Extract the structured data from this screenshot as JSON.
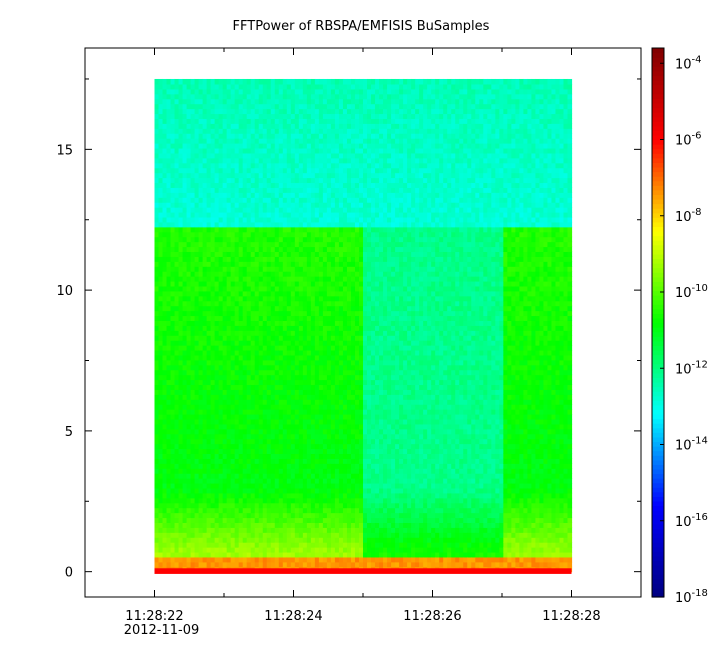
{
  "chart_data": {
    "type": "heatmap",
    "title": "FFTPower of RBSPA/EMFISIS  BuSamples",
    "xlabel": "",
    "ylabel": "",
    "x_ticks": [
      {
        "value": 0,
        "label": "11:28:22",
        "sublabel": "2012-11-09"
      },
      {
        "value": 2,
        "label": "11:28:24",
        "sublabel": ""
      },
      {
        "value": 4,
        "label": "11:28:26",
        "sublabel": ""
      },
      {
        "value": 6,
        "label": "11:28:28",
        "sublabel": ""
      }
    ],
    "xlim": [
      -1.0,
      7.0
    ],
    "y_ticks": [
      0,
      5,
      10,
      15
    ],
    "ylim": [
      -0.9,
      18.6
    ],
    "data_extent": {
      "x": [
        0.0,
        6.0
      ],
      "y": [
        0.0,
        17.5
      ]
    },
    "colorbar": {
      "scale": "log",
      "range_exponent": [
        -18,
        -3.6
      ],
      "tick_exponents": [
        -18,
        -16,
        -14,
        -12,
        -10,
        -8,
        -6,
        -4
      ],
      "tick_labels": [
        "10-18",
        "10-16",
        "10-14",
        "10-12",
        "10-10",
        "10-8",
        "10-6",
        "10-4"
      ],
      "colormap": [
        "#00007f",
        "#0000ff",
        "#00ffff",
        "#00ff00",
        "#ffff00",
        "#ff0000",
        "#7f0000"
      ]
    },
    "power_profile": {
      "quiet_band_time": [
        3.0,
        5.0
      ],
      "band_edge_freq": 12.2,
      "levels_log10": {
        "upper": -12.5,
        "active": -10.8,
        "quiet": -12.1,
        "low_freq": -8.0,
        "dc_line": -6.0
      }
    }
  }
}
